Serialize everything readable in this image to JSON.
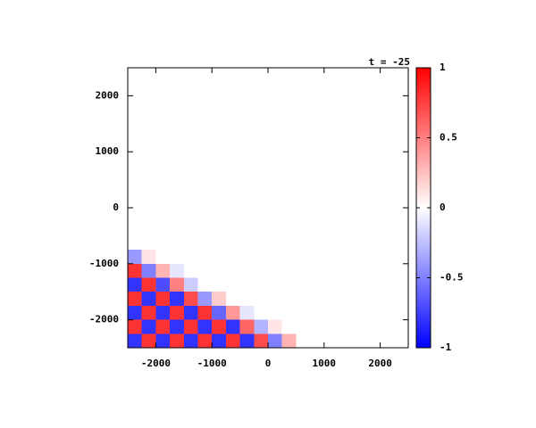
{
  "chart_data": {
    "type": "heatmap",
    "title": "t = -25",
    "xlim": [
      -2500,
      2500
    ],
    "ylim": [
      -2500,
      2500
    ],
    "xticks": [
      -2000,
      -1000,
      0,
      1000,
      2000
    ],
    "yticks": [
      -2000,
      -1000,
      0,
      1000,
      2000
    ],
    "zlim": [
      -1,
      1
    ],
    "zticks": [
      -1,
      -0.5,
      0,
      0.5,
      1
    ],
    "colormap": [
      "#0000ff",
      "#ffffff",
      "#ff0000"
    ],
    "z": [
      [
        0,
        0,
        0,
        0,
        0,
        0,
        0,
        0,
        0,
        0,
        0,
        0,
        0,
        0,
        0,
        0,
        0,
        0,
        0,
        0
      ],
      [
        0,
        0,
        0,
        0,
        0,
        0,
        0,
        0,
        0,
        0,
        0,
        0,
        0,
        0,
        0,
        0,
        0,
        0,
        0,
        0
      ],
      [
        0,
        0,
        0,
        0,
        0,
        0,
        0,
        0,
        0,
        0,
        0,
        0,
        0,
        0,
        0,
        0,
        0,
        0,
        0,
        0
      ],
      [
        0,
        0,
        0,
        0,
        0,
        0,
        0,
        0,
        0,
        0,
        0,
        0,
        0,
        0,
        0,
        0,
        0,
        0,
        0,
        0
      ],
      [
        0,
        0,
        0,
        0,
        0,
        0,
        0,
        0,
        0,
        0,
        0,
        0,
        0,
        0,
        0,
        0,
        0,
        0,
        0,
        0
      ],
      [
        0,
        0,
        0,
        0,
        0,
        0,
        0,
        0,
        0,
        0,
        0,
        0,
        0,
        0,
        0,
        0,
        0,
        0,
        0,
        0
      ],
      [
        0,
        0,
        0,
        0,
        0,
        0,
        0,
        0,
        0,
        0,
        0,
        0,
        0,
        0,
        0,
        0,
        0,
        0,
        0,
        0
      ],
      [
        0,
        0,
        0,
        0,
        0,
        0,
        0,
        0,
        0,
        0,
        0,
        0,
        0,
        0,
        0,
        0,
        0,
        0,
        0,
        0
      ],
      [
        0,
        0,
        0,
        0,
        0,
        0,
        0,
        0,
        0,
        0,
        0,
        0,
        0,
        0,
        0,
        0,
        0,
        0,
        0,
        0
      ],
      [
        0,
        0,
        0,
        0,
        0,
        0,
        0,
        0,
        0,
        0,
        0,
        0,
        0,
        0,
        0,
        0,
        0,
        0,
        0,
        0
      ],
      [
        0,
        0,
        0,
        0,
        0,
        0,
        0,
        0,
        0,
        0,
        0,
        0,
        0,
        0,
        0,
        0,
        0,
        0,
        0,
        0
      ],
      [
        0,
        0,
        0,
        0,
        0,
        0,
        0,
        0,
        0,
        0,
        0,
        0,
        0,
        0,
        0,
        0,
        0,
        0,
        0,
        0
      ],
      [
        0,
        0,
        0,
        0,
        0,
        0,
        0,
        0,
        0,
        0,
        0,
        0,
        0,
        0,
        0,
        0,
        0,
        0,
        0,
        0
      ],
      [
        -0.4,
        0.1,
        0,
        0,
        0,
        0,
        0,
        0,
        0,
        0,
        0,
        0,
        0,
        0,
        0,
        0,
        0,
        0,
        0,
        0
      ],
      [
        0.8,
        -0.5,
        0.3,
        -0.1,
        0,
        0,
        0,
        0,
        0,
        0,
        0,
        0,
        0,
        0,
        0,
        0,
        0,
        0,
        0,
        0
      ],
      [
        -0.8,
        0.8,
        -0.7,
        0.5,
        -0.2,
        0,
        0,
        0,
        0,
        0,
        0,
        0,
        0,
        0,
        0,
        0,
        0,
        0,
        0,
        0
      ],
      [
        0.8,
        -0.8,
        0.8,
        -0.8,
        0.7,
        -0.4,
        0.2,
        0,
        0,
        0,
        0,
        0,
        0,
        0,
        0,
        0,
        0,
        0,
        0,
        0
      ],
      [
        -0.8,
        0.8,
        -0.8,
        0.8,
        -0.8,
        0.8,
        -0.6,
        0.4,
        -0.1,
        0,
        0,
        0,
        0,
        0,
        0,
        0,
        0,
        0,
        0,
        0
      ],
      [
        0.8,
        -0.8,
        0.8,
        -0.8,
        0.8,
        -0.8,
        0.8,
        -0.8,
        0.6,
        -0.3,
        0.1,
        0,
        0,
        0,
        0,
        0,
        0,
        0,
        0,
        0
      ],
      [
        -0.8,
        0.8,
        -0.8,
        0.8,
        -0.8,
        0.8,
        -0.8,
        0.8,
        -0.8,
        0.7,
        -0.5,
        0.3,
        0,
        0,
        0,
        0,
        0,
        0,
        0,
        0
      ]
    ]
  }
}
